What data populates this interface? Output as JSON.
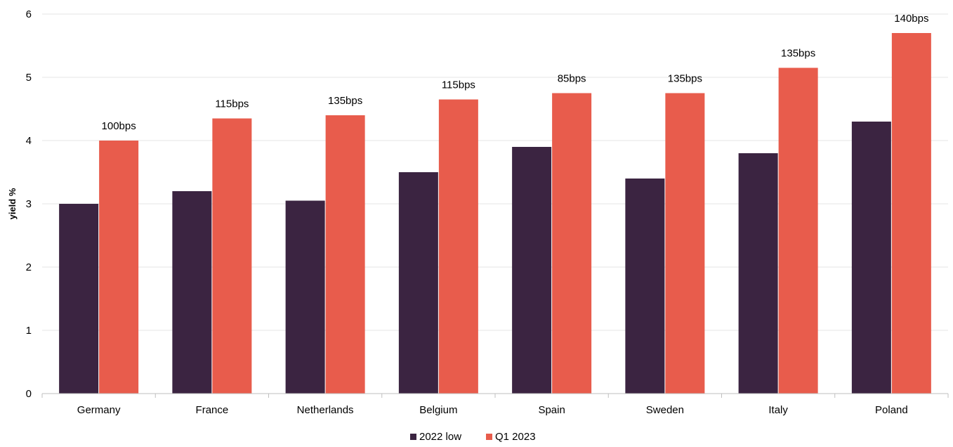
{
  "chart_data": {
    "type": "bar",
    "title": "",
    "xlabel": "",
    "ylabel": "yield %",
    "ylim": [
      0,
      6
    ],
    "yticks": [
      0,
      1,
      2,
      3,
      4,
      5,
      6
    ],
    "grid": true,
    "legend_position": "bottom",
    "categories": [
      "Germany",
      "France",
      "Netherlands",
      "Belgium",
      "Spain",
      "Sweden",
      "Italy",
      "Poland"
    ],
    "series": [
      {
        "name": "2022 low",
        "color": "#3b2441",
        "values": [
          3.0,
          3.2,
          3.05,
          3.5,
          3.9,
          3.4,
          3.8,
          4.3
        ]
      },
      {
        "name": "Q1 2023",
        "color": "#e85c4c",
        "values": [
          4.0,
          4.35,
          4.4,
          4.65,
          4.75,
          4.75,
          5.15,
          5.7
        ],
        "data_labels": [
          "100bps",
          "115bps",
          "135bps",
          "115bps",
          "85bps",
          "135bps",
          "135bps",
          "140bps"
        ]
      }
    ]
  }
}
